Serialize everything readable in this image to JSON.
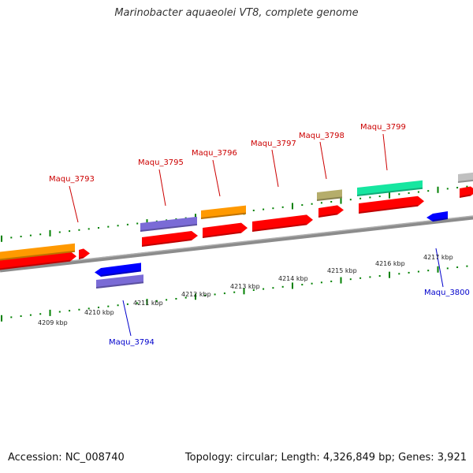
{
  "title": "Marinobacter aquaeolei VT8, complete genome",
  "footer": {
    "accession": "Accession: NC_008740",
    "summary": "Topology: circular; Length: 4,326,849 bp; Genes: 3,921"
  },
  "colors": {
    "backbone": "#808080",
    "forward_cds": "#ff0000",
    "forward_gene_orange": "#ff9900",
    "forward_gene_purple": "#7a6bd6",
    "forward_gene_olive": "#b5ad6b",
    "forward_gene_green": "#16e6a0",
    "forward_gene_gray": "#c0c0c0",
    "reverse_cds": "#0000ff",
    "forward_label": "#cc0000",
    "reverse_label": "#0000cc",
    "tick": "#008000",
    "scale_label": "#222222"
  },
  "scale": {
    "unit": "kbp",
    "labels": [
      "4209 kbp",
      "4210 kbp",
      "4211 kbp",
      "4212 kbp",
      "4213 kbp",
      "4214 kbp",
      "4215 kbp",
      "4216 kbp",
      "4217 kbp"
    ]
  },
  "gene_labels": {
    "forward": [
      "Maqu_3793",
      "Maqu_3795",
      "Maqu_3796",
      "Maqu_3797",
      "Maqu_3798",
      "Maqu_3799"
    ],
    "reverse": [
      "Maqu_3794",
      "Maqu_3800"
    ]
  }
}
